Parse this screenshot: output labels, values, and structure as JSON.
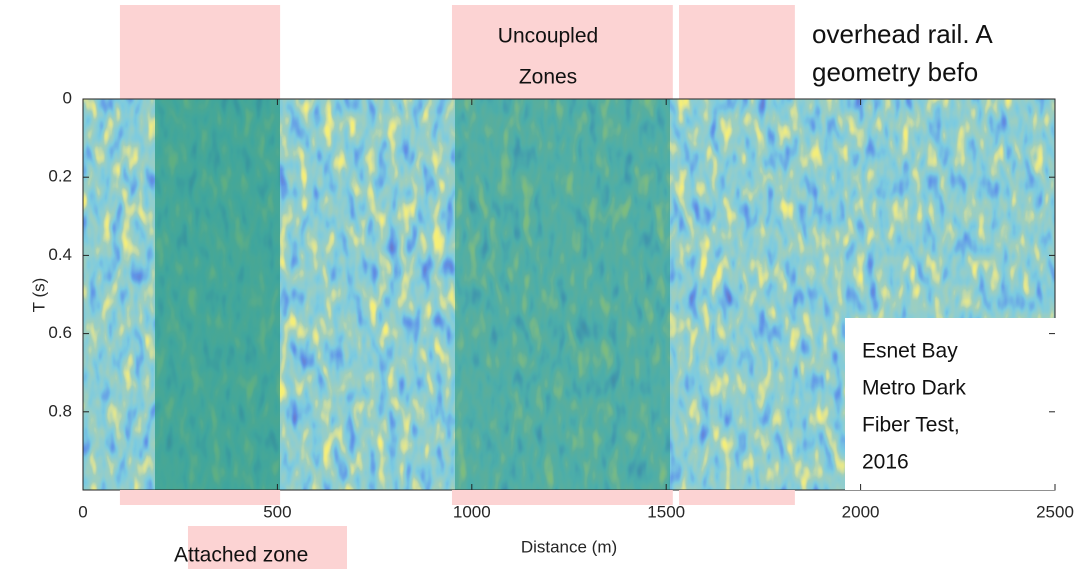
{
  "chart_data": {
    "type": "seismic-image",
    "x_label": "Distance (m)",
    "y_label": "T (s)",
    "xlim": [
      0,
      2500
    ],
    "xticks": [
      0,
      500,
      1000,
      1500,
      2000,
      2500
    ],
    "ylim": [
      1,
      0
    ],
    "yticks": [
      0,
      0.2,
      0.4,
      0.6,
      0.8
    ],
    "uncoupled_zones": [
      [
        95,
        507
      ],
      [
        949,
        1517
      ],
      [
        1533,
        1831
      ]
    ],
    "attached_zone": [
      270,
      679
    ],
    "uncoupled_label": [
      "Uncoupled",
      "Zones"
    ],
    "attached_label": "Attached zone",
    "caption": [
      "Esnet Bay",
      "Metro Dark",
      "Fiber Test,",
      "2016"
    ],
    "cropped_text": [
      "overhead rail. A",
      "geometry befo"
    ]
  }
}
